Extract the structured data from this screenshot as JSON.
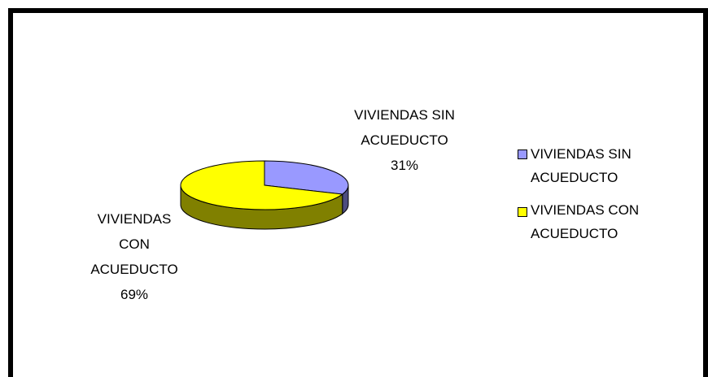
{
  "chart_data": {
    "type": "pie",
    "categories": [
      "VIVIENDAS SIN ACUEDUCTO",
      "VIVIENDAS CON ACUEDUCTO"
    ],
    "values": [
      31,
      69
    ],
    "value_labels": [
      "31%",
      "69%"
    ],
    "colors": [
      "#9999ff",
      "#ffff00"
    ],
    "legend": "right"
  }
}
